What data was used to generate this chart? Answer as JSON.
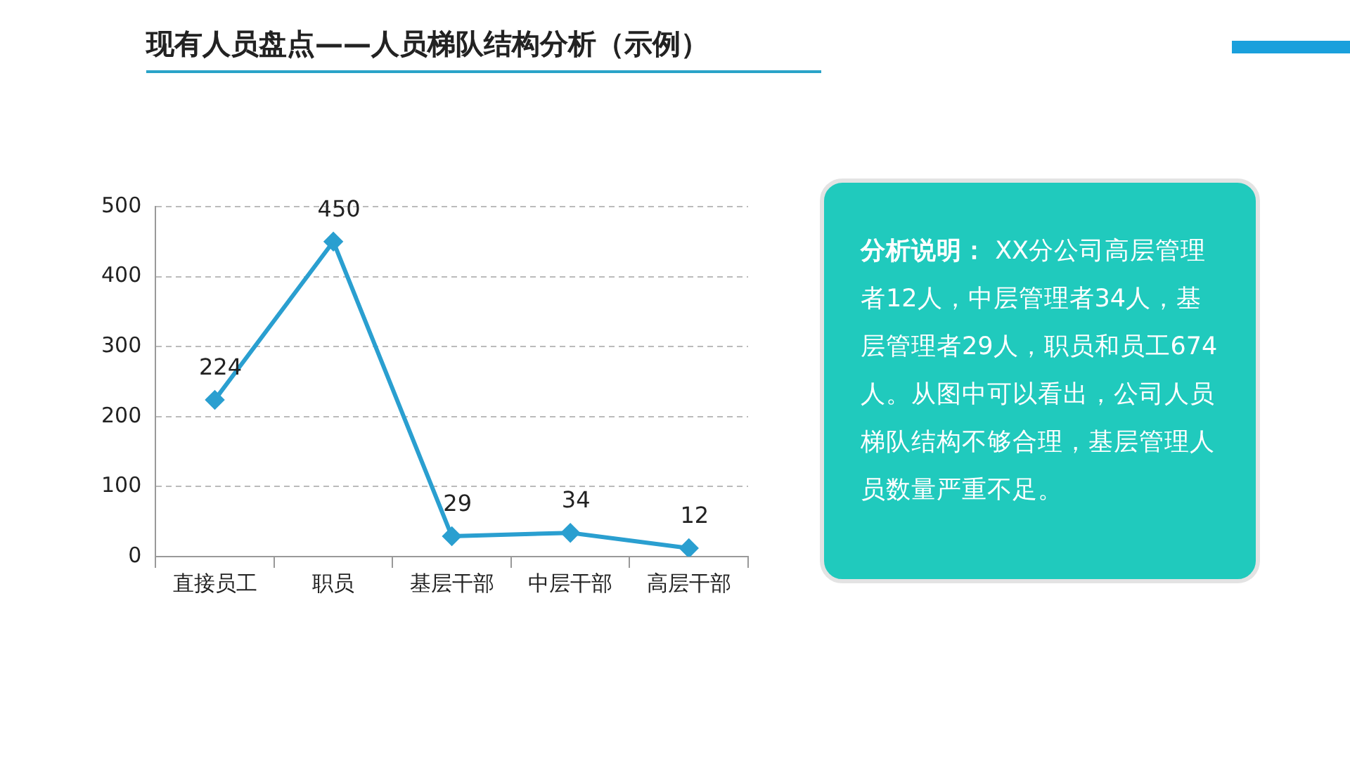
{
  "chart_data": {
    "type": "line",
    "title": "现有人员盘点——人员梯队结构分析（示例）",
    "categories": [
      "直接员工",
      "职员",
      "基层干部",
      "中层干部",
      "高层干部"
    ],
    "series": [
      {
        "color": "#2a9fd0",
        "values": [
          224,
          450,
          29,
          34,
          12
        ]
      }
    ],
    "ylim": [
      0,
      500
    ],
    "yticks": [
      0,
      100,
      200,
      300,
      400,
      500
    ],
    "grid": "y",
    "marker": "diamond",
    "line_style": "solid",
    "data_labels": true,
    "legend": false,
    "annotations": [
      "分析说明：",
      "XX分公司高层管理者12人，中层管理者34人，基层管理者29人，职员和员工674人。从图中可以看出，公司人员梯队结构不够合理，基层管理人员数量严重不足。"
    ]
  }
}
